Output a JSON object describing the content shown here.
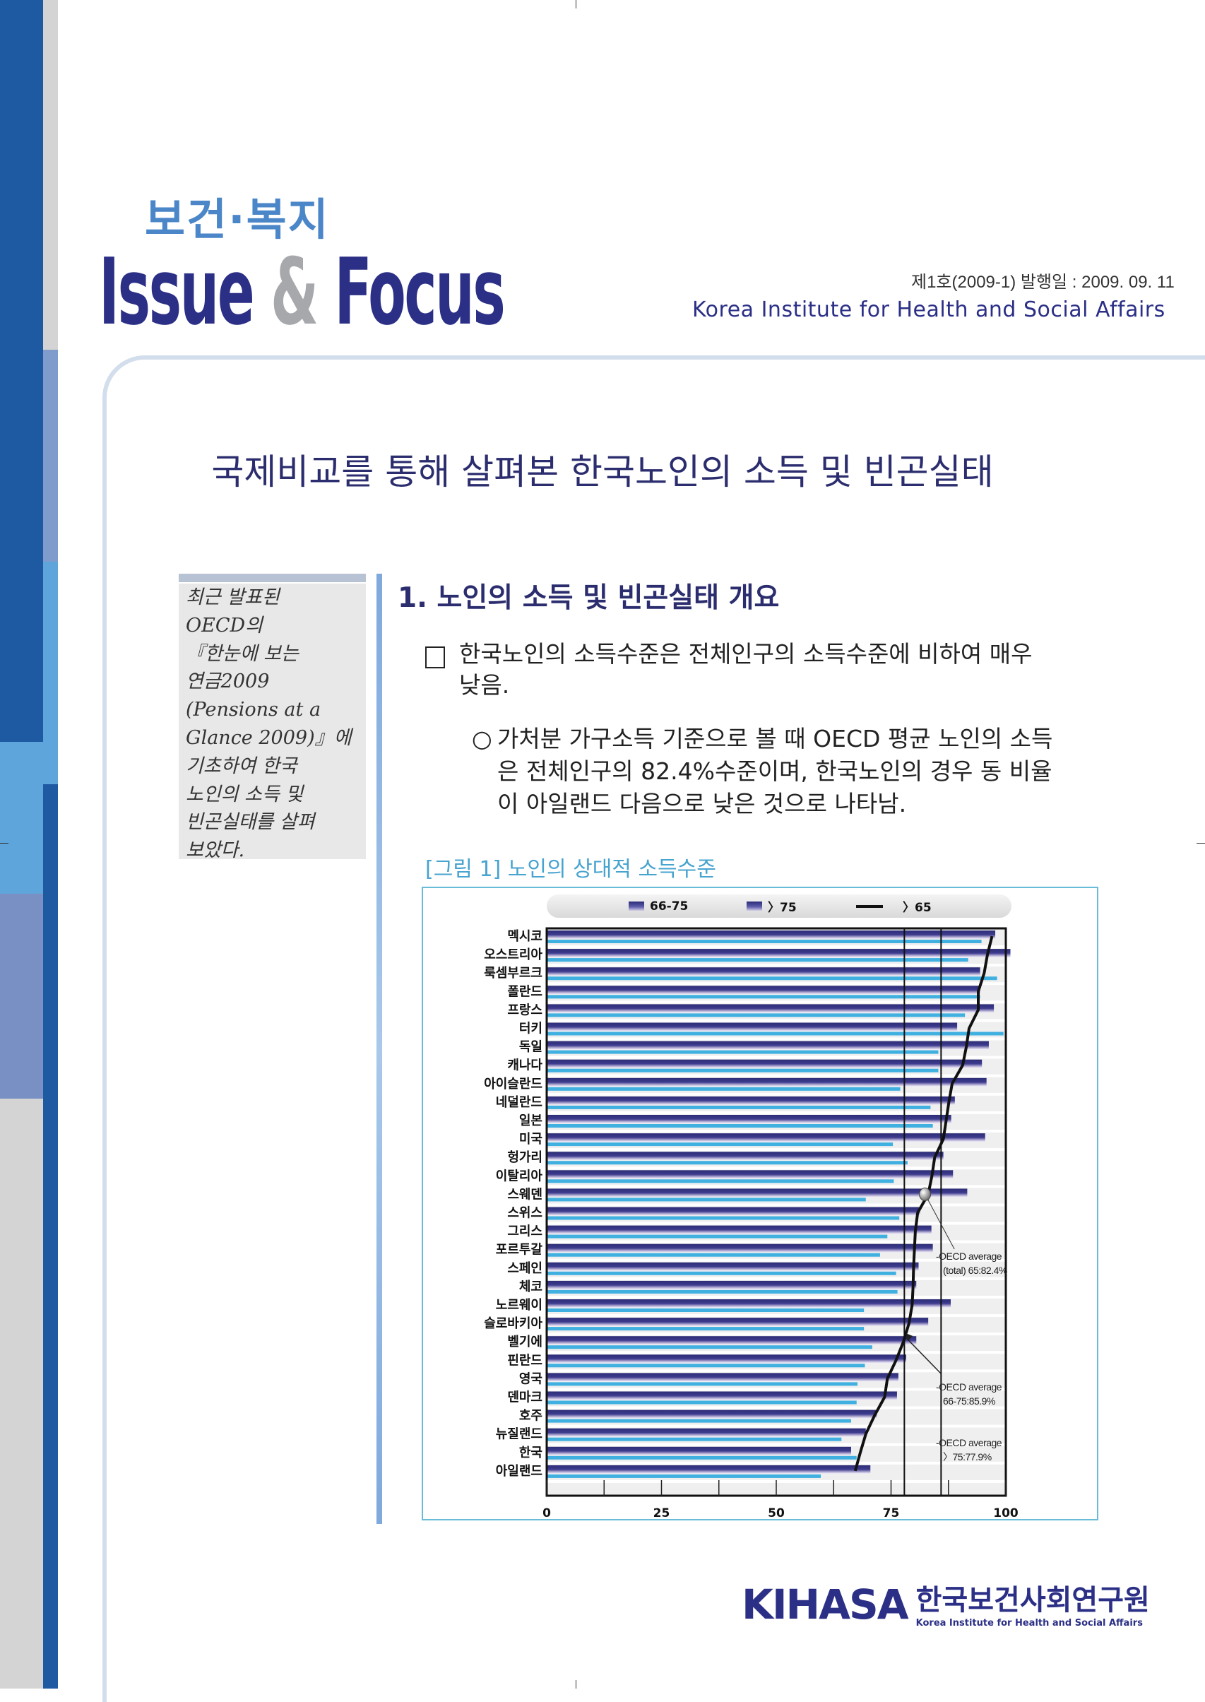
{
  "header": {
    "brand_kr": "보건·복지",
    "brand_issue": "Issue",
    "brand_amp": "&",
    "brand_focus": "Focus",
    "issue_info": "제1호(2009-1) 발행일 : 2009. 09. 11",
    "institute_en": "Korea Institute for Health and Social Affairs"
  },
  "title": "국제비교를 통해 살펴본 한국노인의 소득 및 빈곤실태",
  "sidebar": {
    "lines": [
      "최근 발표된",
      "OECD의",
      "『한눈에 보는",
      "연금2009",
      "(Pensions at a",
      "Glance 2009)』에",
      "기초하여 한국",
      "노인의 소득 및",
      "빈곤실태를 살펴",
      "보았다."
    ]
  },
  "section": {
    "heading": "1. 노인의 소득 및 빈곤실태 개요",
    "bullet_lines": [
      "한국노인의 소득수준은 전체인구의 소득수준에 비하여 매우",
      "낮음."
    ],
    "sub_marker": "○",
    "sub_lines": [
      "가처분 가구소득 기준으로 볼 때 OECD 평균 노인의 소득",
      "은 전체인구의 82.4%수준이며, 한국노인의 경우 동 비율",
      "이 아일랜드 다음으로 낮은 것으로 나타남."
    ],
    "figure_caption": "[그림 1] 노인의 상대적 소득수준"
  },
  "chart_data": {
    "type": "bar",
    "orientation": "horizontal",
    "legend": [
      "66-75",
      "〉75",
      "〉65"
    ],
    "legend_placement": "top",
    "categories": [
      "멕시코",
      "오스트리아",
      "룩셈부르크",
      "폴란드",
      "프랑스",
      "터키",
      "독일",
      "캐나다",
      "아이슬란드",
      "네덜란드",
      "일본",
      "미국",
      "헝가리",
      "이탈리아",
      "스웨덴",
      "스위스",
      "그리스",
      "포르투갈",
      "스페인",
      "체코",
      "노르웨이",
      "슬로바키아",
      "벨기에",
      "핀란드",
      "영국",
      "덴마크",
      "호주",
      "뉴질랜드",
      "한국",
      "아일랜드"
    ],
    "series": [
      {
        "name": "66-75",
        "type": "bar",
        "color": "#2d2d7a",
        "values": [
          97.7,
          101,
          94.4,
          94.4,
          97.4,
          89.4,
          96.3,
          94.8,
          95.8,
          88.9,
          88.1,
          95.5,
          86.4,
          88.5,
          91.6,
          81.3,
          83.8,
          84.1,
          81,
          80.5,
          88,
          83.1,
          80.5,
          78.3,
          76.6,
          76.3,
          71.9,
          69.5,
          66.3,
          70.5
        ]
      },
      {
        "name": "〉75",
        "type": "bar",
        "color": "#3fb0e0",
        "values": [
          94.7,
          91.8,
          98.1,
          94.4,
          91.1,
          99.5,
          85.3,
          85.3,
          77,
          83.6,
          84.1,
          75.4,
          78.6,
          75.6,
          69.5,
          76.8,
          74.2,
          72.6,
          76.1,
          76.4,
          69.1,
          69.1,
          70.9,
          69.3,
          67.7,
          67.5,
          66.3,
          64.2,
          67.5,
          59.7
        ]
      },
      {
        "name": "〉65",
        "type": "line",
        "color": "#111111",
        "values": [
          97,
          96,
          95.3,
          94,
          94,
          92,
          91.4,
          90.6,
          88.3,
          87.6,
          87,
          86.4,
          84.5,
          83.9,
          83.1,
          80.8,
          80.3,
          80.1,
          79.9,
          79.8,
          79.6,
          78.9,
          77.7,
          76.1,
          74.2,
          73.6,
          71.4,
          69.5,
          68.3,
          67.2
        ]
      }
    ],
    "xlim": [
      0,
      100
    ],
    "xticks": [
      "0",
      "25",
      "50",
      "75",
      "100"
    ],
    "grid": false,
    "reference_lines": [
      77.9,
      85.9
    ],
    "marker_value": 82.4,
    "annotations": [
      {
        "line1": "-OECD average",
        "line2": "(total) 65:82.4%"
      },
      {
        "line1": "-OECD average",
        "line2": "66-75:85.9%"
      },
      {
        "line1": "-OECD average",
        "line2": "〉75:77.9%"
      }
    ]
  },
  "footer": {
    "logo": "KIHASA",
    "logo_kr": "한국보건사회연구원",
    "logo_en": "Korea Institute for Health and Social Affairs"
  }
}
